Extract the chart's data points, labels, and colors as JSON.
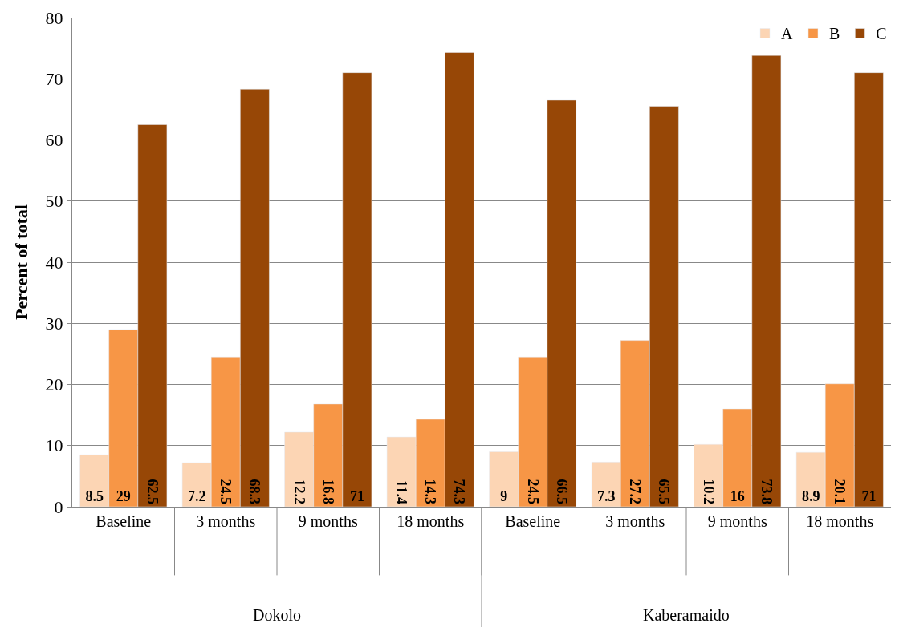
{
  "chart_data": {
    "type": "bar",
    "ylabel": "Percent of total",
    "categories": [
      "Baseline",
      "3 months",
      "9 months",
      "18 months",
      "Baseline",
      "3 months",
      "9 months",
      "18 months"
    ],
    "series": [
      {
        "name": "A",
        "color": "#fcd5b4",
        "values": [
          8.5,
          7.2,
          12.2,
          11.4,
          9,
          7.3,
          10.2,
          8.9
        ]
      },
      {
        "name": "B",
        "color": "#f79646",
        "values": [
          29,
          24.5,
          16.8,
          14.3,
          24.5,
          27.2,
          16,
          20.1
        ]
      },
      {
        "name": "C",
        "color": "#974706",
        "values": [
          62.5,
          68.3,
          71,
          74.3,
          66.5,
          65.5,
          73.8,
          71
        ]
      }
    ],
    "ylim": [
      0,
      80
    ],
    "yticks": [
      0,
      10,
      20,
      30,
      40,
      50,
      60,
      70,
      80
    ],
    "grid": "y",
    "legend": "top right",
    "data_labels": true,
    "annotations": [
      "Dokolo",
      "Kaberamaido"
    ]
  }
}
